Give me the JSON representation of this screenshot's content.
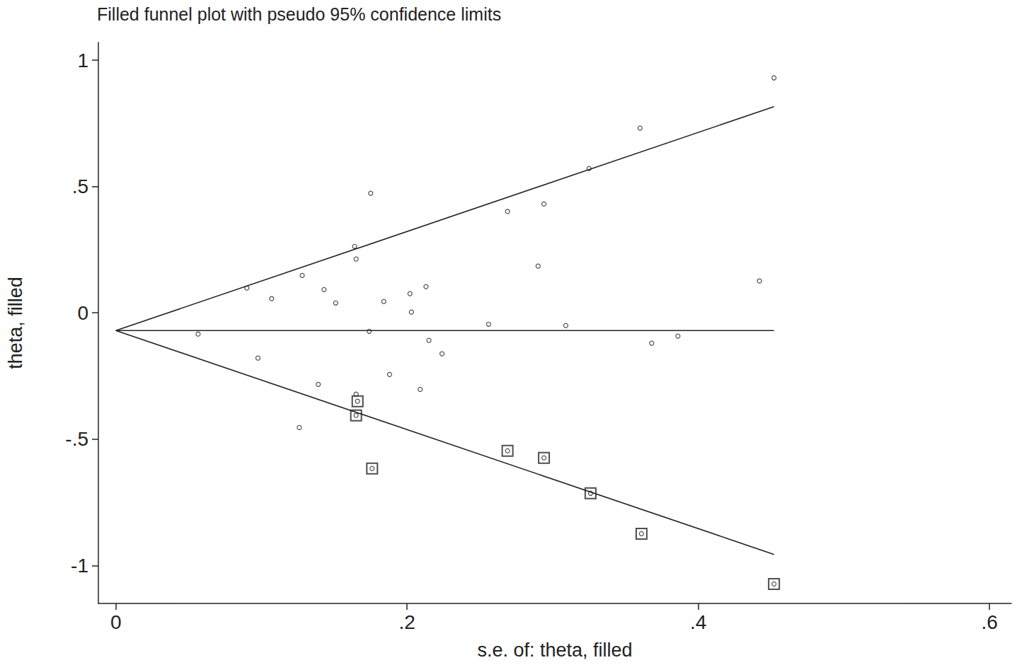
{
  "chart_data": {
    "type": "scatter",
    "title": "Filled funnel plot with pseudo 95% confidence limits",
    "x_label": "s.e. of: theta, filled",
    "y_label": "theta, filled",
    "xlim": [
      -0.012,
      0.615
    ],
    "ylim": [
      -1.15,
      1.07
    ],
    "xticks": [
      0,
      {
        "value": 0.2,
        "label": ".2"
      },
      {
        "value": 0.4,
        "label": ".4"
      },
      {
        "value": 0.6,
        "label": ".6"
      }
    ],
    "yticks": [
      -1,
      {
        "value": -0.5,
        "label": "-.5"
      },
      0,
      {
        "value": 0.5,
        "label": ".5"
      },
      1
    ],
    "grid": false,
    "series": [
      {
        "type": "scatter",
        "marker": "circle",
        "color": "#222222",
        "x": [
          0.0565,
          0.09,
          0.0976,
          0.107,
          0.128,
          0.126,
          0.143,
          0.139,
          0.151,
          0.164,
          0.165,
          0.165,
          0.175,
          0.174,
          0.184,
          0.188,
          0.202,
          0.203,
          0.213,
          0.215,
          0.209,
          0.224,
          0.256,
          0.269,
          0.29,
          0.294,
          0.309,
          0.325,
          0.36,
          0.368,
          0.386,
          0.442,
          0.452
        ],
        "values": [
          -0.084,
          0.098,
          -0.179,
          0.056,
          0.148,
          -0.454,
          0.092,
          -0.283,
          0.039,
          0.263,
          0.213,
          -0.322,
          0.473,
          -0.073,
          0.045,
          -0.244,
          0.076,
          0.003,
          0.104,
          -0.109,
          -0.303,
          -0.162,
          -0.045,
          0.401,
          0.185,
          0.431,
          -0.05,
          0.571,
          0.731,
          -0.12,
          -0.092,
          0.126,
          0.93
        ]
      },
      {
        "type": "scatter",
        "marker": "square",
        "color": "#222222",
        "x": [
          0.166,
          0.165,
          0.176,
          0.269,
          0.294,
          0.326,
          0.361,
          0.452
        ],
        "values": [
          -0.35,
          -0.406,
          -0.616,
          -0.546,
          -0.574,
          -0.714,
          -0.874,
          -1.073
        ]
      },
      {
        "type": "line",
        "line_style": "solid",
        "color": "#222222",
        "x": [
          0,
          0.452
        ],
        "values": [
          -0.07,
          -0.07
        ]
      },
      {
        "type": "line",
        "line_style": "solid",
        "color": "#222222",
        "x": [
          0,
          0.452
        ],
        "values": [
          -0.07,
          0.816
        ]
      },
      {
        "type": "line",
        "line_style": "solid",
        "color": "#222222",
        "x": [
          0,
          0.452
        ],
        "values": [
          -0.07,
          -0.956
        ]
      }
    ]
  }
}
